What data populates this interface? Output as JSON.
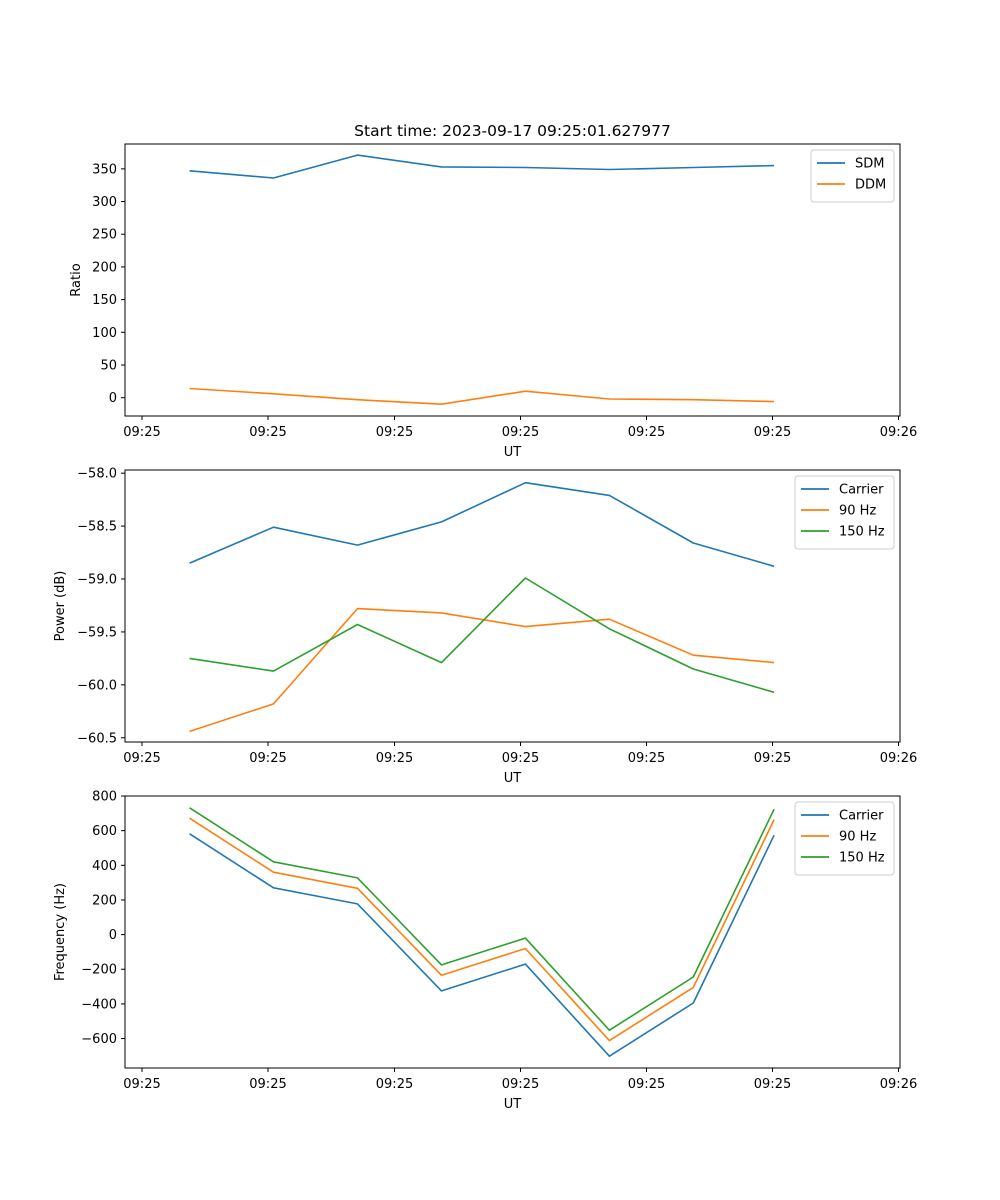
{
  "title": "Start time: 2023-09-17 09:25:01.627977",
  "colors": {
    "blue": "#1f77b4",
    "orange": "#ff7f0e",
    "green": "#2ca02c"
  },
  "chart_data": [
    {
      "type": "line",
      "title": "Start time: 2023-09-17 09:25:01.627977",
      "xlabel": "UT",
      "ylabel": "Ratio",
      "x_ticks": [
        "09:25",
        "09:25",
        "09:25",
        "09:25",
        "09:25",
        "09:25",
        "09:26"
      ],
      "y_ticks": [
        "0",
        "50",
        "100",
        "150",
        "200",
        "250",
        "300",
        "350"
      ],
      "y_tick_values": [
        0,
        50,
        100,
        150,
        200,
        250,
        300,
        350
      ],
      "xlim": [
        0,
        12
      ],
      "ylim": [
        -28,
        388
      ],
      "x": [
        1,
        2.3,
        3.6,
        4.9,
        6.2,
        7.5,
        8.8,
        10.05
      ],
      "series": [
        {
          "name": "SDM",
          "color": "#1f77b4",
          "values": [
            347,
            336,
            371,
            353,
            352,
            349,
            352,
            355
          ]
        },
        {
          "name": "DDM",
          "color": "#ff7f0e",
          "values": [
            14,
            6,
            -3,
            -10,
            10,
            -2,
            -3,
            -6
          ]
        }
      ],
      "legend": "top-right"
    },
    {
      "type": "line",
      "title": "",
      "xlabel": "UT",
      "ylabel": "Power (dB)",
      "x_ticks": [
        "09:25",
        "09:25",
        "09:25",
        "09:25",
        "09:25",
        "09:25",
        "09:26"
      ],
      "y_ticks": [
        "−60.5",
        "−60.0",
        "−59.5",
        "−59.0",
        "−58.5",
        "−58.0"
      ],
      "y_tick_values": [
        -60.5,
        -60.0,
        -59.5,
        -59.0,
        -58.5,
        -58.0
      ],
      "xlim": [
        0,
        12
      ],
      "ylim": [
        -60.54,
        -57.97
      ],
      "x": [
        1,
        2.3,
        3.6,
        4.9,
        6.2,
        7.5,
        8.8,
        10.05
      ],
      "series": [
        {
          "name": "Carrier",
          "color": "#1f77b4",
          "values": [
            -58.85,
            -58.51,
            -58.68,
            -58.46,
            -58.09,
            -58.21,
            -58.66,
            -58.88
          ]
        },
        {
          "name": "90 Hz",
          "color": "#ff7f0e",
          "values": [
            -60.44,
            -60.18,
            -59.28,
            -59.32,
            -59.45,
            -59.38,
            -59.72,
            -59.79
          ]
        },
        {
          "name": "150 Hz",
          "color": "#2ca02c",
          "values": [
            -59.75,
            -59.87,
            -59.43,
            -59.79,
            -58.99,
            -59.47,
            -59.85,
            -60.07
          ]
        }
      ],
      "legend": "top-right"
    },
    {
      "type": "line",
      "title": "",
      "xlabel": "UT",
      "ylabel": "Frequency (Hz)",
      "x_ticks": [
        "09:25",
        "09:25",
        "09:25",
        "09:25",
        "09:25",
        "09:25",
        "09:26"
      ],
      "y_ticks": [
        "−600",
        "−400",
        "−200",
        "0",
        "200",
        "400",
        "600",
        "800"
      ],
      "y_tick_values": [
        -600,
        -400,
        -200,
        0,
        200,
        400,
        600,
        800
      ],
      "xlim": [
        0,
        12
      ],
      "ylim": [
        -770,
        800
      ],
      "x": [
        1,
        2.3,
        3.6,
        4.9,
        6.2,
        7.5,
        8.8,
        10.05
      ],
      "series": [
        {
          "name": "Carrier",
          "color": "#1f77b4",
          "values": [
            582,
            270,
            177,
            -325,
            -170,
            -702,
            -395,
            574
          ]
        },
        {
          "name": "90 Hz",
          "color": "#ff7f0e",
          "values": [
            672,
            360,
            267,
            -235,
            -80,
            -612,
            -305,
            664
          ]
        },
        {
          "name": "150 Hz",
          "color": "#2ca02c",
          "values": [
            732,
            420,
            327,
            -175,
            -20,
            -552,
            -245,
            724
          ]
        }
      ],
      "legend": "top-right"
    }
  ]
}
